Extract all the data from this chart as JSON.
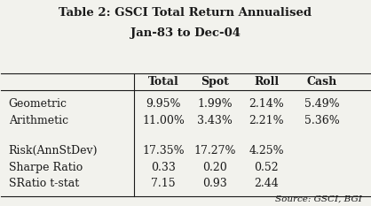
{
  "title_line1": "Table 2: GSCI Total Return Annualised",
  "title_line2": "Jan-83 to Dec-04",
  "col_headers": [
    "Total",
    "Spot",
    "Roll",
    "Cash"
  ],
  "row_labels": [
    "Geometric",
    "Arithmetic",
    "",
    "Risk(AnnStDev)",
    "Sharpe Ratio",
    "SRatio t-stat"
  ],
  "table_data": [
    [
      "9.95%",
      "1.99%",
      "2.14%",
      "5.49%"
    ],
    [
      "11.00%",
      "3.43%",
      "2.21%",
      "5.36%"
    ],
    [
      "",
      "",
      "",
      ""
    ],
    [
      "17.35%",
      "17.27%",
      "4.25%",
      ""
    ],
    [
      "0.33",
      "0.20",
      "0.52",
      ""
    ],
    [
      "7.15",
      "0.93",
      "2.44",
      ""
    ]
  ],
  "source_text": "Source: GSCI, BGI",
  "bg_color": "#f2f2ed",
  "text_color": "#1a1a1a",
  "title_fontsize": 9.5,
  "header_fontsize": 9,
  "cell_fontsize": 9,
  "source_fontsize": 7.5
}
